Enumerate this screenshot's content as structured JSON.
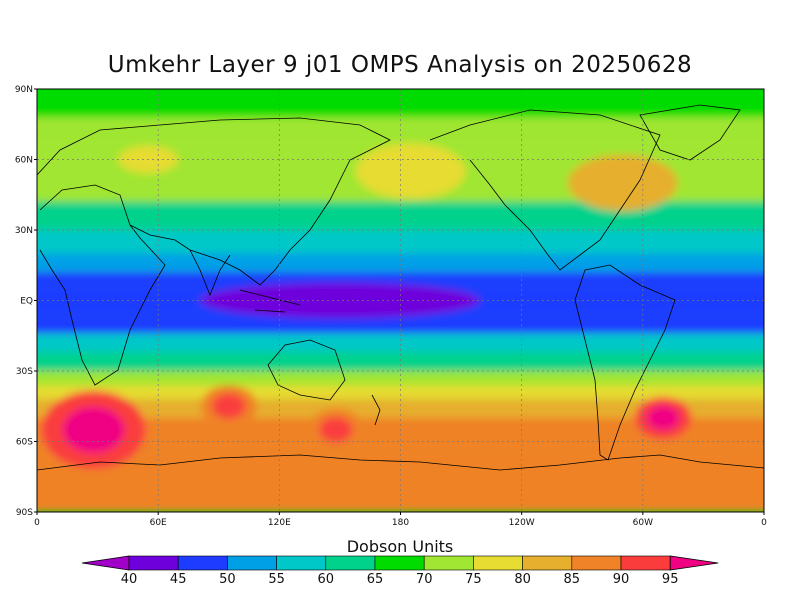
{
  "title": "Umkehr Layer 9 j01 OMPS Analysis on 20250628",
  "chart_data": {
    "type": "heatmap",
    "title": "Umkehr Layer 9 j01 OMPS Analysis on 20250628",
    "y_ticks": [
      "90N",
      "60N",
      "30N",
      "EQ",
      "30S",
      "60S",
      "90S"
    ],
    "x_ticks": [
      "0",
      "60E",
      "120E",
      "180",
      "120W",
      "60W",
      "0"
    ],
    "lat_range": [
      -90,
      90
    ],
    "lon_range": [
      0,
      360
    ],
    "grid": true,
    "colorbar": {
      "title": "Dobson Units",
      "levels": [
        40,
        45,
        50,
        55,
        60,
        65,
        70,
        75,
        80,
        85,
        90,
        95
      ],
      "colors": [
        "#a000c8",
        "#6e00dc",
        "#1e3cff",
        "#00a0e6",
        "#00c8c8",
        "#00d28c",
        "#00dc00",
        "#a0e632",
        "#e6dc32",
        "#e6af2d",
        "#f08228",
        "#fa3c3c",
        "#f00082"
      ]
    },
    "features": {
      "tropical_minimum": {
        "value_du": 42,
        "lat": 0,
        "lon": 150
      },
      "southern_maxima": [
        {
          "value_du": 97,
          "lat": -55,
          "lon": 28
        },
        {
          "value_du": 95,
          "lat": -50,
          "lon": 310
        },
        {
          "value_du": 93,
          "lat": -45,
          "lon": 95
        },
        {
          "value_du": 93,
          "lat": -55,
          "lon": 148
        }
      ],
      "northern_highs": [
        {
          "value_du": 77,
          "lat": 60,
          "lon": 55
        },
        {
          "value_du": 78,
          "lat": 55,
          "lon": 185
        },
        {
          "value_du": 84,
          "lat": 50,
          "lon": 290
        }
      ]
    }
  }
}
